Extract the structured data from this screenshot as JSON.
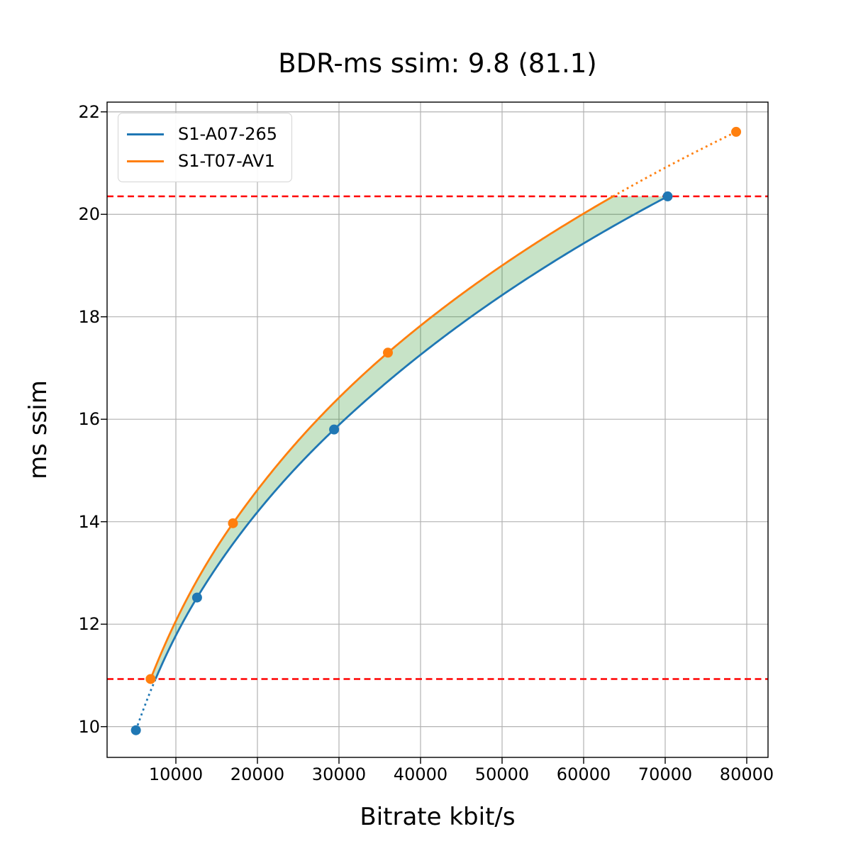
{
  "chart_data": {
    "type": "line",
    "title": "BDR-ms ssim: 9.8 (81.1)",
    "xlabel": "Bitrate kbit/s",
    "ylabel": "ms ssim",
    "xlim": [
      1565,
      82610
    ],
    "ylim": [
      9.4,
      22.19
    ],
    "x_ticks": [
      10000,
      20000,
      30000,
      40000,
      50000,
      60000,
      70000,
      80000
    ],
    "y_ticks": [
      10,
      12,
      14,
      16,
      18,
      20,
      22
    ],
    "grid": true,
    "grid_color": "#b2b2b2",
    "legend_position": "upper left",
    "series": [
      {
        "name": "S1-A07-265",
        "color": "#1f77b4",
        "points": [
          [
            5100,
            9.93
          ],
          [
            12600,
            12.52
          ],
          [
            29400,
            15.8
          ],
          [
            70300,
            20.35
          ]
        ],
        "dotted_region": "below_quality_interval"
      },
      {
        "name": "S1-T07-AV1",
        "color": "#ff7f0e",
        "points": [
          [
            6900,
            10.93
          ],
          [
            17000,
            13.97
          ],
          [
            36000,
            17.3
          ],
          [
            78700,
            21.61
          ]
        ],
        "dotted_region": "above_quality_interval"
      }
    ],
    "quality_interval_lines": {
      "color": "#ff0000",
      "style": "dashed",
      "values": [
        10.93,
        20.35
      ]
    },
    "fill_between": {
      "color": "#008000",
      "opacity": 0.22
    }
  }
}
